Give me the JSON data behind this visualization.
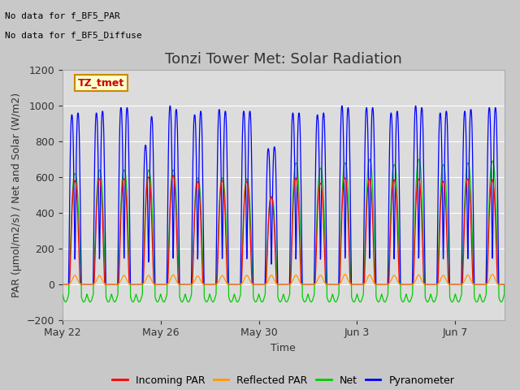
{
  "title": "Tonzi Tower Met: Solar Radiation",
  "xlabel": "Time",
  "ylabel": "PAR (μmol/m2/s) / Net and Solar (W/m2)",
  "ylim": [
    -200,
    1200
  ],
  "yticks": [
    -200,
    0,
    200,
    400,
    600,
    800,
    1000,
    1200
  ],
  "xtick_positions": [
    0,
    4,
    8,
    12,
    16
  ],
  "xtick_labels": [
    "May 22",
    "May 26",
    "May 30",
    "Jun 3",
    "Jun 7"
  ],
  "fig_bg": "#c8c8c8",
  "plot_bg": "#dcdcdc",
  "grid_color": "#ffffff",
  "legend_items": [
    "Incoming PAR",
    "Reflected PAR",
    "Net",
    "Pyranometer"
  ],
  "legend_colors": [
    "#ff0000",
    "#ff9900",
    "#00cc00",
    "#0000ff"
  ],
  "note1": "No data for f_BF5_PAR",
  "note2": "No data for f_BF5_Diffuse",
  "label_box_text": "TZ_tmet",
  "label_box_color": "#ffffcc",
  "label_box_border": "#cc8800",
  "label_text_color": "#cc0000",
  "total_days": 18,
  "blue_peaks": [
    950,
    960,
    990,
    780,
    1000,
    950,
    980,
    970,
    760,
    960,
    950,
    1000,
    990,
    960,
    1000,
    960,
    970,
    990
  ],
  "blue_peaks2": [
    960,
    970,
    990,
    940,
    980,
    970,
    970,
    970,
    770,
    960,
    960,
    990,
    990,
    970,
    990,
    970,
    980,
    990
  ],
  "red_peaks": [
    580,
    590,
    590,
    600,
    610,
    575,
    580,
    575,
    490,
    595,
    565,
    595,
    590,
    585,
    590,
    575,
    590,
    585
  ],
  "green_peaks": [
    620,
    640,
    640,
    640,
    640,
    595,
    595,
    590,
    490,
    680,
    650,
    680,
    700,
    670,
    700,
    670,
    680,
    690
  ],
  "orange_peaks": [
    50,
    48,
    50,
    50,
    52,
    46,
    48,
    50,
    50,
    52,
    50,
    55,
    52,
    50,
    52,
    50,
    52,
    55
  ],
  "night_green": -100,
  "title_fontsize": 13,
  "axis_fontsize": 9,
  "tick_fontsize": 9,
  "note_fontsize": 8
}
